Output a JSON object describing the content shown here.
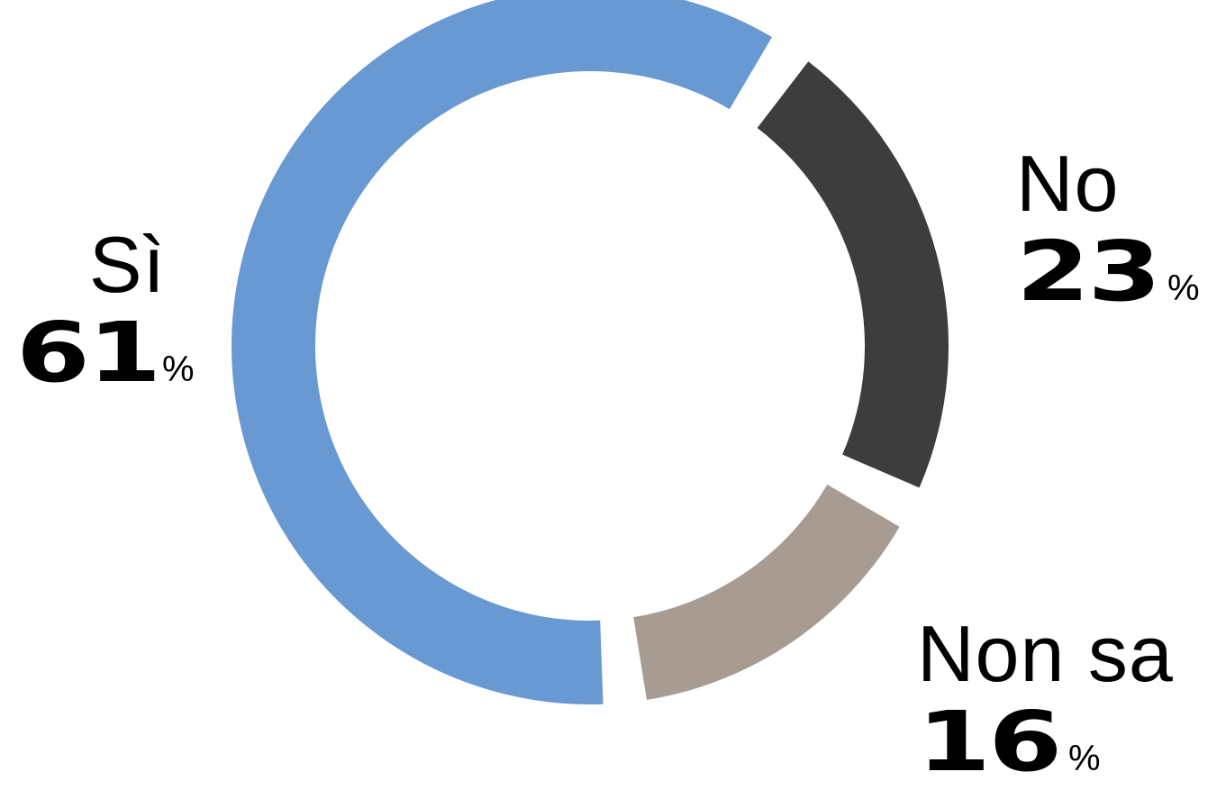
{
  "chart_data": {
    "type": "pie",
    "style": "donut",
    "categories": [
      "Sì",
      "No",
      "Non sa"
    ],
    "values": [
      61,
      23,
      16
    ],
    "unit": "%",
    "colors": [
      "#6899d3",
      "#3d3d3d",
      "#a89c92"
    ],
    "labels": [
      {
        "name": "Sì",
        "value": "61",
        "unit": "%"
      },
      {
        "name": "No",
        "value": "23",
        "unit": "%"
      },
      {
        "name": "Non sa",
        "value": "16",
        "unit": "%"
      }
    ]
  }
}
